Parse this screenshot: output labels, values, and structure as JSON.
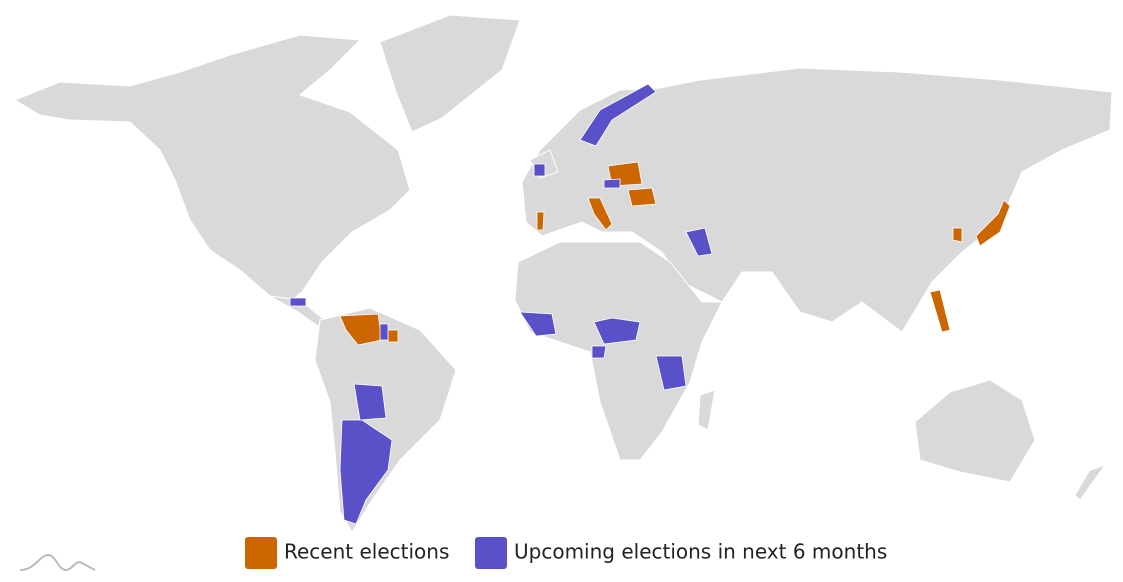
{
  "legend": {
    "items": [
      {
        "label": "Recent elections",
        "color": "#cc6600"
      },
      {
        "label": "Upcoming elections in next 6 months",
        "color": "#5a50c8"
      }
    ]
  }
}
